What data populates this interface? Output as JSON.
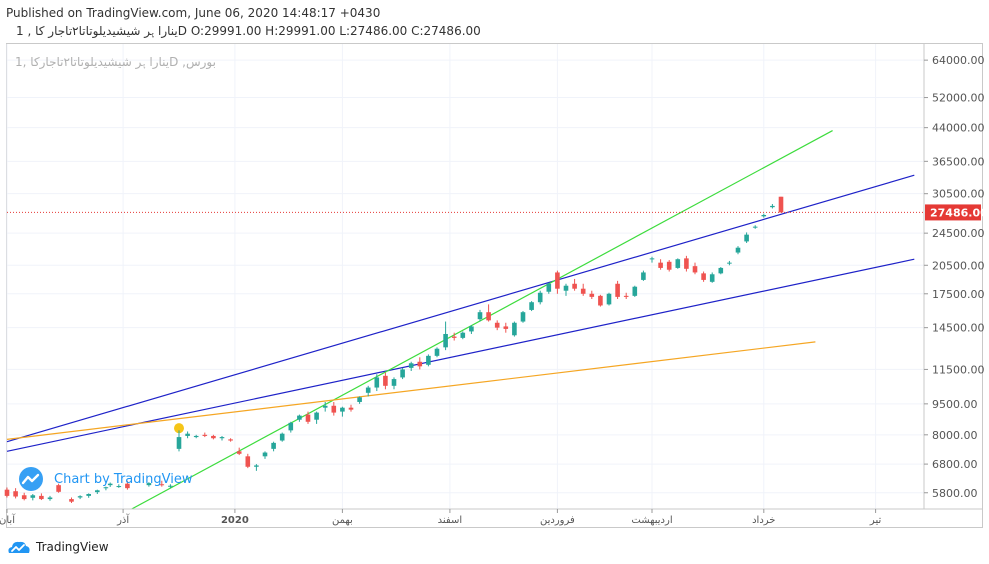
{
  "header": {
    "published": "Published on TradingView.com, June 06, 2020 14:48:17 +0430",
    "symbol": "ﯾﻨﺎرا ﮨﺮ ﺷﯿﺸﯿﺪﯾﻠﻮﺗﺎﺗﺎ٢ﺗﺎﺟﺎﺭ ﮐﺎ",
    "ohlc": ", 1D O:29991.00 H:29991.00 L:27486.00 C:27486.00"
  },
  "legend": {
    "text": "ﯾﻨﺎرا ﮨﺮ ﺷﯿﺸﯿﺪﯾﻠﻮﺗﺎﺗﺎ٢ﺗﺎﺟﺎﺭﮐﺎ  ,1D  ,ﺑﻮرس"
  },
  "watermark": {
    "text": "Chart by TradingView"
  },
  "footer": {
    "brand": "TradingView"
  },
  "colors": {
    "up": "#26a69a",
    "down": "#ef5350",
    "price": "#e53935",
    "blue_line": "#1e22c8",
    "green_line": "#3ddc3d",
    "orange_line": "#f5a623",
    "grid": "#f0f3fa",
    "axis_text": "#555555"
  },
  "chart_data": {
    "type": "candlestick",
    "last_price_label": "27486.00",
    "last_price": 27486,
    "y_scale": "log",
    "ylim": [
      5300,
      70000
    ],
    "y_ticks": [
      {
        "v": 64000,
        "label": "64000.00"
      },
      {
        "v": 52000,
        "label": "52000.00"
      },
      {
        "v": 44000,
        "label": "44000.00"
      },
      {
        "v": 36500,
        "label": "36500.00"
      },
      {
        "v": 30500,
        "label": "30500.00"
      },
      {
        "v": 24500,
        "label": "24500.00"
      },
      {
        "v": 20500,
        "label": "20500.00"
      },
      {
        "v": 17500,
        "label": "17500.00"
      },
      {
        "v": 14500,
        "label": "14500.00"
      },
      {
        "v": 11500,
        "label": "11500.00"
      },
      {
        "v": 9500,
        "label": "9500.00"
      },
      {
        "v": 8000,
        "label": "8000.00"
      },
      {
        "v": 6800,
        "label": "6800.00"
      },
      {
        "v": 5800,
        "label": "5800.00"
      }
    ],
    "x_ticks": [
      {
        "i": 0,
        "label": "آبان"
      },
      {
        "i": 27,
        "label": "آذر"
      },
      {
        "i": 53,
        "label": "2020"
      },
      {
        "i": 78,
        "label": "بهمن"
      },
      {
        "i": 103,
        "label": "اسفند"
      },
      {
        "i": 128,
        "label": "فروردین"
      },
      {
        "i": 150,
        "label": "اردیبهشت"
      },
      {
        "i": 176,
        "label": "خرداد"
      },
      {
        "i": 202,
        "label": "تیر"
      }
    ],
    "x_count": 211,
    "candles": [
      {
        "i": 0,
        "o": 5900,
        "h": 5970,
        "l": 5650,
        "c": 5700
      },
      {
        "i": 2,
        "o": 5850,
        "h": 5950,
        "l": 5620,
        "c": 5680
      },
      {
        "i": 4,
        "o": 5720,
        "h": 5800,
        "l": 5560,
        "c": 5600
      },
      {
        "i": 6,
        "o": 5640,
        "h": 5760,
        "l": 5560,
        "c": 5720
      },
      {
        "i": 8,
        "o": 5700,
        "h": 5780,
        "l": 5570,
        "c": 5600
      },
      {
        "i": 10,
        "o": 5600,
        "h": 5700,
        "l": 5550,
        "c": 5650
      },
      {
        "i": 12,
        "o": 6050,
        "h": 6100,
        "l": 5800,
        "c": 5830
      },
      {
        "i": 15,
        "o": 5600,
        "h": 5650,
        "l": 5480,
        "c": 5520
      },
      {
        "i": 17,
        "o": 5650,
        "h": 5720,
        "l": 5600,
        "c": 5690
      },
      {
        "i": 19,
        "o": 5700,
        "h": 5780,
        "l": 5640,
        "c": 5760
      },
      {
        "i": 21,
        "o": 5820,
        "h": 5900,
        "l": 5760,
        "c": 5880
      },
      {
        "i": 23,
        "o": 5950,
        "h": 6000,
        "l": 5880,
        "c": 5980
      },
      {
        "i": 24,
        "o": 6050,
        "h": 6140,
        "l": 5990,
        "c": 6100
      },
      {
        "i": 26,
        "o": 6000,
        "h": 6080,
        "l": 5960,
        "c": 6020
      },
      {
        "i": 28,
        "o": 6100,
        "h": 6200,
        "l": 5900,
        "c": 5950
      },
      {
        "i": 33,
        "o": 6050,
        "h": 6150,
        "l": 6000,
        "c": 6120
      },
      {
        "i": 36,
        "o": 6080,
        "h": 6200,
        "l": 6000,
        "c": 6050
      },
      {
        "i": 38,
        "o": 6000,
        "h": 6080,
        "l": 5950,
        "c": 6030
      },
      {
        "i": 40,
        "o": 7400,
        "h": 8200,
        "l": 7300,
        "c": 7900
      },
      {
        "i": 42,
        "o": 7950,
        "h": 8150,
        "l": 7850,
        "c": 8050
      },
      {
        "i": 44,
        "o": 7900,
        "h": 8000,
        "l": 7850,
        "c": 7950
      },
      {
        "i": 46,
        "o": 8000,
        "h": 8100,
        "l": 7900,
        "c": 7950
      },
      {
        "i": 48,
        "o": 7950,
        "h": 8000,
        "l": 7800,
        "c": 7850
      },
      {
        "i": 50,
        "o": 7850,
        "h": 7950,
        "l": 7750,
        "c": 7900
      },
      {
        "i": 52,
        "o": 7800,
        "h": 7850,
        "l": 7700,
        "c": 7750
      },
      {
        "i": 54,
        "o": 7300,
        "h": 7450,
        "l": 7150,
        "c": 7200
      },
      {
        "i": 56,
        "o": 7100,
        "h": 7200,
        "l": 6650,
        "c": 6700
      },
      {
        "i": 58,
        "o": 6700,
        "h": 6800,
        "l": 6550,
        "c": 6750
      },
      {
        "i": 60,
        "o": 7100,
        "h": 7300,
        "l": 7000,
        "c": 7250
      },
      {
        "i": 62,
        "o": 7400,
        "h": 7700,
        "l": 7300,
        "c": 7650
      },
      {
        "i": 64,
        "o": 7750,
        "h": 8100,
        "l": 7700,
        "c": 8050
      },
      {
        "i": 66,
        "o": 8200,
        "h": 8600,
        "l": 8100,
        "c": 8550
      },
      {
        "i": 68,
        "o": 8700,
        "h": 8950,
        "l": 8600,
        "c": 8900
      },
      {
        "i": 70,
        "o": 8950,
        "h": 9100,
        "l": 8500,
        "c": 8600
      },
      {
        "i": 72,
        "o": 8700,
        "h": 9100,
        "l": 8500,
        "c": 9050
      },
      {
        "i": 74,
        "o": 9300,
        "h": 9600,
        "l": 9100,
        "c": 9400
      },
      {
        "i": 76,
        "o": 9400,
        "h": 9600,
        "l": 8900,
        "c": 9050
      },
      {
        "i": 78,
        "o": 9100,
        "h": 9350,
        "l": 8850,
        "c": 9300
      },
      {
        "i": 80,
        "o": 9300,
        "h": 9450,
        "l": 9100,
        "c": 9200
      },
      {
        "i": 82,
        "o": 9600,
        "h": 9900,
        "l": 9500,
        "c": 9850
      },
      {
        "i": 84,
        "o": 10100,
        "h": 10500,
        "l": 9900,
        "c": 10400
      },
      {
        "i": 86,
        "o": 10400,
        "h": 11200,
        "l": 10200,
        "c": 11000
      },
      {
        "i": 88,
        "o": 11100,
        "h": 11300,
        "l": 10300,
        "c": 10500
      },
      {
        "i": 90,
        "o": 10500,
        "h": 11000,
        "l": 10300,
        "c": 10900
      },
      {
        "i": 92,
        "o": 11000,
        "h": 11600,
        "l": 10900,
        "c": 11500
      },
      {
        "i": 94,
        "o": 11600,
        "h": 12000,
        "l": 11400,
        "c": 11900
      },
      {
        "i": 96,
        "o": 12000,
        "h": 12300,
        "l": 11500,
        "c": 11700
      },
      {
        "i": 98,
        "o": 11800,
        "h": 12500,
        "l": 11700,
        "c": 12400
      },
      {
        "i": 100,
        "o": 12400,
        "h": 13000,
        "l": 12300,
        "c": 12900
      },
      {
        "i": 102,
        "o": 13000,
        "h": 15000,
        "l": 12800,
        "c": 14000
      },
      {
        "i": 104,
        "o": 13800,
        "h": 14100,
        "l": 13500,
        "c": 13700
      },
      {
        "i": 106,
        "o": 13700,
        "h": 14200,
        "l": 13600,
        "c": 14100
      },
      {
        "i": 108,
        "o": 14200,
        "h": 14700,
        "l": 14000,
        "c": 14600
      },
      {
        "i": 110,
        "o": 15200,
        "h": 16000,
        "l": 15000,
        "c": 15800
      },
      {
        "i": 112,
        "o": 15800,
        "h": 16500,
        "l": 15000,
        "c": 15100
      },
      {
        "i": 114,
        "o": 14900,
        "h": 15100,
        "l": 14300,
        "c": 14500
      },
      {
        "i": 116,
        "o": 14600,
        "h": 14900,
        "l": 14100,
        "c": 14400
      },
      {
        "i": 118,
        "o": 13900,
        "h": 15000,
        "l": 13800,
        "c": 14900
      },
      {
        "i": 120,
        "o": 15000,
        "h": 15900,
        "l": 14900,
        "c": 15800
      },
      {
        "i": 122,
        "o": 16000,
        "h": 16800,
        "l": 15900,
        "c": 16700
      },
      {
        "i": 124,
        "o": 16700,
        "h": 17800,
        "l": 16500,
        "c": 17600
      },
      {
        "i": 126,
        "o": 17700,
        "h": 18600,
        "l": 17500,
        "c": 18500
      },
      {
        "i": 128,
        "o": 19700,
        "h": 19900,
        "l": 17500,
        "c": 18000
      },
      {
        "i": 130,
        "o": 17800,
        "h": 18500,
        "l": 17300,
        "c": 18300
      },
      {
        "i": 132,
        "o": 18500,
        "h": 19000,
        "l": 17800,
        "c": 18000
      },
      {
        "i": 134,
        "o": 18000,
        "h": 18500,
        "l": 17300,
        "c": 17500
      },
      {
        "i": 136,
        "o": 17500,
        "h": 17800,
        "l": 17000,
        "c": 17200
      },
      {
        "i": 138,
        "o": 17300,
        "h": 17400,
        "l": 16300,
        "c": 16400
      },
      {
        "i": 140,
        "o": 16500,
        "h": 17600,
        "l": 16400,
        "c": 17500
      },
      {
        "i": 142,
        "o": 18500,
        "h": 18800,
        "l": 17000,
        "c": 17200
      },
      {
        "i": 144,
        "o": 17300,
        "h": 17600,
        "l": 17000,
        "c": 17200
      },
      {
        "i": 146,
        "o": 17300,
        "h": 18300,
        "l": 17200,
        "c": 18200
      },
      {
        "i": 148,
        "o": 18900,
        "h": 19900,
        "l": 18800,
        "c": 19700
      },
      {
        "i": 150,
        "o": 21200,
        "h": 21500,
        "l": 20800,
        "c": 21300
      },
      {
        "i": 152,
        "o": 20800,
        "h": 21200,
        "l": 20000,
        "c": 20200
      },
      {
        "i": 154,
        "o": 20900,
        "h": 21100,
        "l": 19800,
        "c": 20000
      },
      {
        "i": 156,
        "o": 20200,
        "h": 21300,
        "l": 20100,
        "c": 21200
      },
      {
        "i": 158,
        "o": 21300,
        "h": 21600,
        "l": 19800,
        "c": 20100
      },
      {
        "i": 160,
        "o": 20400,
        "h": 20800,
        "l": 19500,
        "c": 19700
      },
      {
        "i": 162,
        "o": 19600,
        "h": 19800,
        "l": 18700,
        "c": 18900
      },
      {
        "i": 164,
        "o": 18700,
        "h": 19700,
        "l": 18600,
        "c": 19500
      },
      {
        "i": 166,
        "o": 19600,
        "h": 20300,
        "l": 19500,
        "c": 20200
      },
      {
        "i": 168,
        "o": 20700,
        "h": 21000,
        "l": 20500,
        "c": 20800
      },
      {
        "i": 170,
        "o": 22000,
        "h": 22800,
        "l": 21800,
        "c": 22600
      },
      {
        "i": 172,
        "o": 23400,
        "h": 24600,
        "l": 23200,
        "c": 24300
      },
      {
        "i": 174,
        "o": 25300,
        "h": 25600,
        "l": 25100,
        "c": 25400
      },
      {
        "i": 176,
        "o": 26900,
        "h": 27300,
        "l": 26700,
        "c": 27100
      },
      {
        "i": 178,
        "o": 28300,
        "h": 28800,
        "l": 28100,
        "c": 28500
      },
      {
        "i": 180,
        "o": 29991,
        "h": 29991,
        "l": 27486,
        "c": 27486
      }
    ],
    "trendlines": [
      {
        "color": "blue",
        "points": [
          [
            0,
            7700
          ],
          [
            211,
            33800
          ]
        ]
      },
      {
        "color": "blue",
        "points": [
          [
            0,
            7300
          ],
          [
            211,
            21200
          ]
        ]
      },
      {
        "color": "green",
        "points": [
          [
            29,
            5300
          ],
          [
            192,
            43300
          ]
        ]
      },
      {
        "color": "orange",
        "points": [
          [
            0,
            7800
          ],
          [
            188,
            13400
          ]
        ]
      }
    ],
    "marker": {
      "i": 40,
      "v": 8300
    }
  }
}
